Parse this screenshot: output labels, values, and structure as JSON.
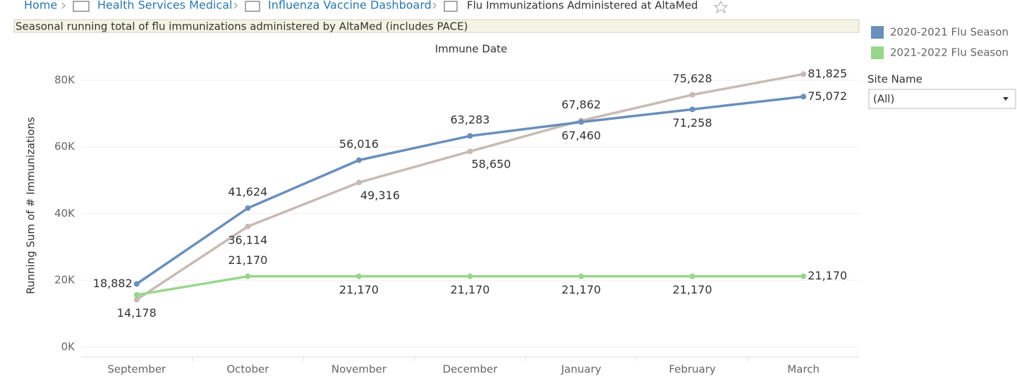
{
  "breadcrumb": [
    "Home",
    "Health Services Medical",
    "Influenza Vaccine Dashboard",
    "Flu Immunizations Administered at AltaMed"
  ],
  "subtitle": "Seasonal running total of flu immunizations administered by AltaMed (includes PACE)",
  "filter": {
    "label": "Site Name",
    "value": "(All)"
  },
  "chart_data": {
    "type": "line",
    "title": "Immune Date",
    "y_label": "Running Sum of # Immunizations",
    "categories": [
      "September",
      "October",
      "November",
      "December",
      "January",
      "February",
      "March"
    ],
    "ylim": [
      -3000,
      84000
    ],
    "yticks": [
      {
        "value": 0,
        "label": "0K"
      },
      {
        "value": 20000,
        "label": "20K"
      },
      {
        "value": 40000,
        "label": "40K"
      },
      {
        "value": 60000,
        "label": "60K"
      },
      {
        "value": 80000,
        "label": "80K"
      }
    ],
    "grid": true,
    "series": [
      {
        "color": "#c8bab4",
        "values": [
          14178,
          36114,
          49316,
          58650,
          67862,
          75628,
          81825
        ],
        "value_labels": [
          "14,178",
          "36,114",
          "49,316",
          "58,650",
          "67,862",
          "75,628",
          "81,825"
        ]
      },
      {
        "name": "2020-2021 Flu Season",
        "color": "#6a8fbb",
        "values": [
          18882,
          41624,
          56016,
          63283,
          67460,
          71258,
          75072
        ],
        "value_labels": [
          "18,882",
          "41,624",
          "56,016",
          "63,283",
          "67,460",
          "71,258",
          "75,072"
        ]
      },
      {
        "name": "2021-2022 Flu Season",
        "color": "#98d68b",
        "values": [
          15600,
          21170,
          21170,
          21170,
          21170,
          21170,
          21170
        ],
        "value_labels": [
          null,
          "21,170",
          "21,170",
          "21,170",
          "21,170",
          "21,170",
          "21,170"
        ]
      }
    ]
  }
}
